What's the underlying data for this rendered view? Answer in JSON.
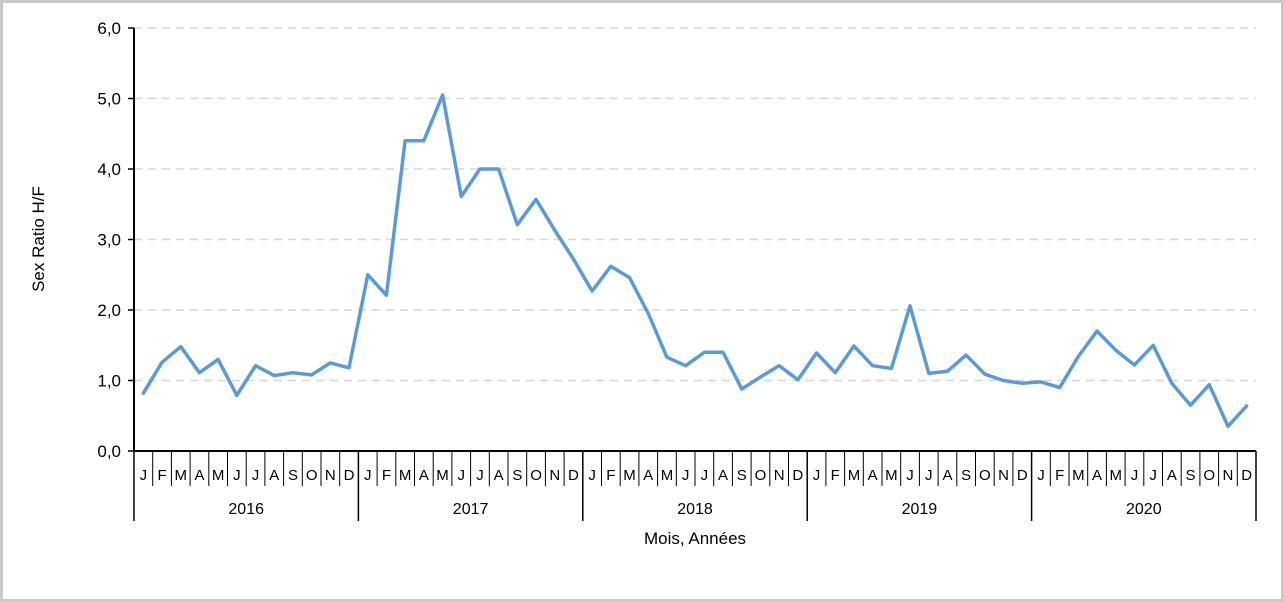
{
  "frame": {
    "border_color": "#c9c9c9",
    "background_color": "#ffffff"
  },
  "chart_data": {
    "type": "line",
    "title": "",
    "ylabel": "Sex Ratio H/F",
    "xlabel": "Mois, Années",
    "ylim": [
      0,
      6
    ],
    "y_ticks": [
      0,
      1,
      2,
      3,
      4,
      5,
      6
    ],
    "y_tick_labels": [
      "0,0",
      "1,0",
      "2,0",
      "3,0",
      "4,0",
      "5,0",
      "6,0"
    ],
    "month_labels": [
      "J",
      "F",
      "M",
      "A",
      "M",
      "J",
      "J",
      "A",
      "S",
      "O",
      "N",
      "D"
    ],
    "years": [
      "2016",
      "2017",
      "2018",
      "2019",
      "2020"
    ],
    "grid": "horizontal-dashed",
    "legend": "none",
    "markers": "none",
    "line_color": "#5b9bd5",
    "axis_color": "#000000",
    "gridline_color": "#d6d6d6",
    "series": [
      {
        "name": "Sex Ratio H/F",
        "values": [
          0.82,
          1.26,
          1.48,
          1.11,
          1.3,
          0.79,
          1.21,
          1.07,
          1.11,
          1.08,
          1.25,
          1.18,
          2.5,
          2.21,
          4.4,
          4.4,
          5.05,
          3.61,
          4.0,
          4.0,
          3.21,
          3.57,
          3.13,
          2.72,
          2.27,
          2.62,
          2.46,
          1.95,
          1.33,
          1.21,
          1.4,
          1.4,
          0.88,
          1.05,
          1.21,
          1.01,
          1.39,
          1.11,
          1.49,
          1.21,
          1.17,
          2.06,
          1.1,
          1.13,
          1.36,
          1.09,
          1.0,
          0.96,
          0.98,
          0.9,
          1.34,
          1.7,
          1.43,
          1.22,
          1.5,
          0.96,
          0.65,
          0.94,
          0.35,
          0.64
        ]
      }
    ]
  }
}
